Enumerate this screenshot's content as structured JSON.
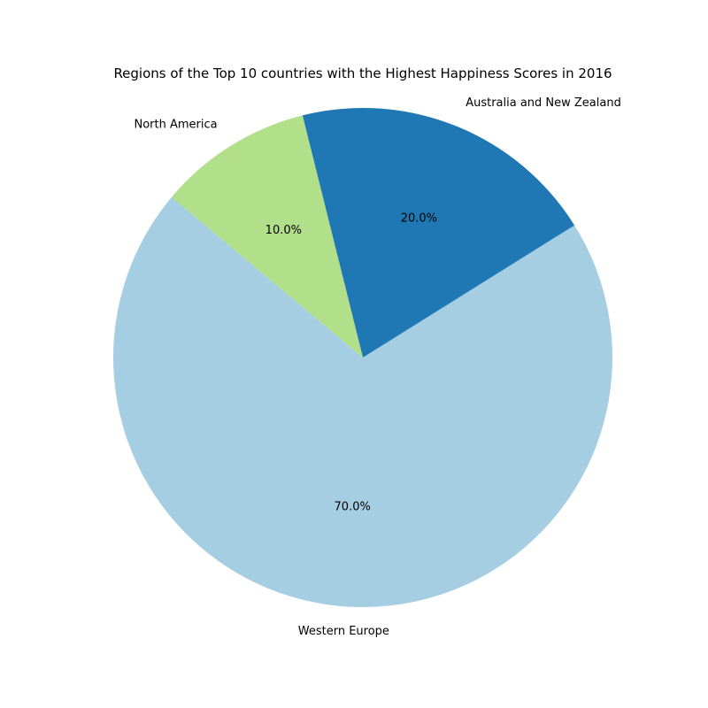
{
  "chart_data": {
    "type": "pie",
    "title": "Regions of the Top 10 countries with the Highest Happiness Scores in 2016",
    "slices": [
      {
        "label": "Western Europe",
        "value": 70.0,
        "pct_label": "70.0%",
        "color": "#a6cee3"
      },
      {
        "label": "Australia and New Zealand",
        "value": 20.0,
        "pct_label": "20.0%",
        "color": "#1f78b4"
      },
      {
        "label": "North America",
        "value": 10.0,
        "pct_label": "10.0%",
        "color": "#b2df8a"
      }
    ]
  }
}
